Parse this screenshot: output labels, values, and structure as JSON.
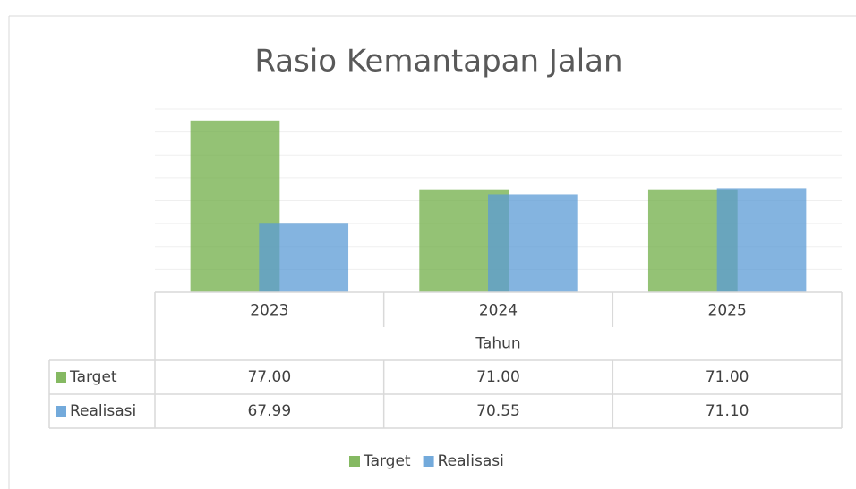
{
  "chart_data": {
    "type": "bar",
    "title": "Rasio Kemantapan Jalan",
    "x_label": "Tahun",
    "categories": [
      "2023",
      "2024",
      "2025"
    ],
    "series": [
      {
        "name": "Target",
        "color": "#70ad47",
        "values": [
          77,
          71,
          71
        ],
        "value_labels": [
          "77.00",
          "71.00",
          "71.00"
        ]
      },
      {
        "name": "Realisasi",
        "color": "#5b9bd5",
        "values": [
          67.99,
          70.55,
          71.1
        ],
        "value_labels": [
          "67.99",
          "70.55",
          "71.10"
        ]
      }
    ],
    "ylim": [
      62,
      78
    ],
    "yticks": [
      62,
      64,
      66,
      68,
      70,
      72,
      74,
      76,
      78
    ],
    "ytick_labels_visible": false,
    "grid": true,
    "legend": "bottom",
    "data_table": true
  }
}
